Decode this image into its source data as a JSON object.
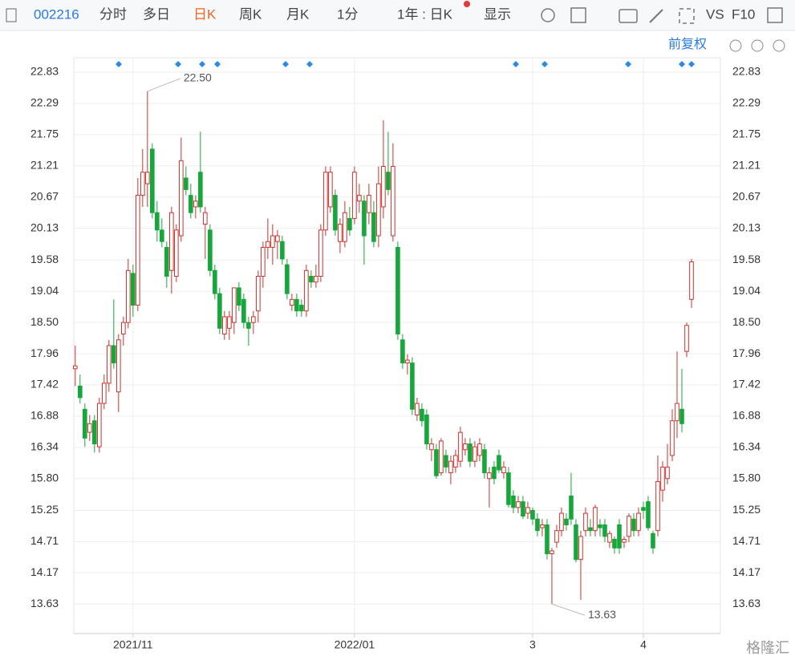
{
  "toolbar": {
    "code": "002216",
    "tabs": [
      "分时",
      "多日",
      "日K",
      "周K",
      "月K",
      "1分",
      "1年 : 日K",
      "显示",
      "VS",
      "F10"
    ],
    "active_tab": "日K"
  },
  "adjust": "前复权",
  "watermark": "格隆汇",
  "chart_data": {
    "type": "candlestick",
    "up_color": "#d0312d",
    "down_color": "#14a83b",
    "ylim": [
      13.12,
      23.08
    ],
    "yticks": [
      22.83,
      22.29,
      21.75,
      21.21,
      20.67,
      20.13,
      19.58,
      19.04,
      {
        "value": 18.5,
        "label": "18.50"
      },
      17.96,
      17.42,
      16.88,
      16.34,
      {
        "value": 15.8,
        "label": "15.80"
      },
      15.25,
      14.71,
      14.17,
      13.63
    ],
    "xlim": [
      -0.3,
      134
    ],
    "xticks": [
      {
        "value": 12,
        "label": "2021/11"
      },
      {
        "value": 58,
        "label": "2022/01"
      },
      {
        "value": 95,
        "label": "3"
      },
      {
        "value": 118,
        "label": "4"
      }
    ],
    "annotations": [
      {
        "index": 15,
        "value": 22.5,
        "label": "22.50"
      },
      {
        "index": 99,
        "value": 13.63
      }
    ],
    "grid": true,
    "values": [
      [
        17.7,
        18.1,
        17.4,
        17.75
      ],
      [
        17.4,
        17.6,
        17.1,
        17.2
      ],
      [
        17.0,
        17.1,
        16.35,
        16.5
      ],
      [
        16.6,
        16.9,
        16.45,
        16.75
      ],
      [
        16.8,
        16.9,
        16.25,
        16.4
      ],
      [
        16.35,
        17.2,
        16.25,
        17.1
      ],
      [
        17.1,
        17.6,
        17.0,
        17.45
      ],
      [
        17.45,
        18.2,
        17.3,
        18.1
      ],
      [
        18.1,
        18.9,
        17.7,
        17.8
      ],
      [
        17.3,
        18.3,
        16.95,
        18.2
      ],
      [
        18.3,
        18.6,
        18.1,
        18.5
      ],
      [
        18.5,
        19.6,
        18.4,
        19.4
      ],
      [
        19.35,
        19.5,
        18.6,
        18.8
      ],
      [
        18.8,
        21.0,
        18.7,
        20.7
      ],
      [
        20.7,
        21.5,
        20.5,
        21.1
      ],
      [
        20.9,
        22.5,
        20.5,
        21.1
      ],
      [
        21.5,
        21.6,
        20.3,
        20.4
      ],
      [
        20.4,
        20.6,
        19.9,
        20.1
      ],
      [
        20.1,
        20.3,
        19.8,
        19.9
      ],
      [
        19.8,
        19.9,
        19.1,
        19.3
      ],
      [
        19.4,
        20.5,
        19.0,
        20.4
      ],
      [
        19.3,
        20.2,
        19.2,
        20.1
      ],
      [
        20.0,
        21.7,
        19.9,
        21.3
      ],
      [
        21.0,
        21.2,
        20.7,
        20.8
      ],
      [
        20.7,
        20.9,
        20.3,
        20.4
      ],
      [
        20.5,
        20.7,
        20.3,
        20.6
      ],
      [
        21.1,
        21.8,
        20.4,
        20.5
      ],
      [
        20.2,
        20.5,
        19.6,
        20.4
      ],
      [
        20.1,
        20.2,
        19.3,
        19.4
      ],
      [
        19.4,
        19.5,
        18.9,
        19.0
      ],
      [
        19.0,
        19.1,
        18.3,
        18.4
      ],
      [
        18.3,
        18.7,
        18.2,
        18.6
      ],
      [
        18.4,
        18.7,
        18.2,
        18.6
      ],
      [
        18.5,
        19.1,
        18.3,
        19.1
      ],
      [
        19.1,
        19.2,
        18.7,
        18.8
      ],
      [
        18.9,
        19.0,
        18.4,
        18.5
      ],
      [
        18.5,
        18.6,
        18.1,
        18.4
      ],
      [
        18.5,
        18.7,
        18.3,
        18.6
      ],
      [
        18.7,
        19.4,
        18.5,
        19.3
      ],
      [
        19.3,
        19.9,
        19.1,
        19.8
      ],
      [
        19.8,
        20.3,
        19.6,
        19.9
      ],
      [
        19.8,
        20.2,
        19.5,
        20.0
      ],
      [
        19.9,
        20.1,
        19.6,
        20.0
      ],
      [
        19.9,
        20.0,
        19.5,
        19.6
      ],
      [
        19.5,
        19.6,
        18.9,
        19.0
      ],
      [
        18.8,
        19.0,
        18.7,
        18.9
      ],
      [
        18.9,
        19.0,
        18.6,
        18.7
      ],
      [
        18.8,
        18.9,
        18.6,
        18.7
      ],
      [
        18.7,
        19.5,
        18.6,
        19.4
      ],
      [
        19.3,
        19.4,
        19.1,
        19.2
      ],
      [
        19.2,
        19.5,
        19.1,
        19.3
      ],
      [
        19.3,
        20.2,
        19.2,
        20.1
      ],
      [
        20.1,
        21.2,
        20.0,
        21.1
      ],
      [
        20.5,
        21.2,
        20.4,
        21.1
      ],
      [
        20.7,
        20.8,
        20.0,
        20.1
      ],
      [
        19.9,
        20.3,
        19.7,
        20.2
      ],
      [
        19.9,
        20.6,
        19.8,
        20.4
      ],
      [
        20.3,
        20.5,
        20.0,
        20.1
      ],
      [
        20.3,
        21.2,
        20.2,
        21.1
      ],
      [
        20.6,
        20.9,
        20.4,
        20.7
      ],
      [
        20.6,
        20.7,
        19.5,
        20.0
      ],
      [
        20.4,
        20.9,
        20.2,
        20.7
      ],
      [
        20.4,
        20.6,
        19.8,
        19.9
      ],
      [
        20.0,
        21.2,
        19.8,
        20.9
      ],
      [
        20.5,
        22.0,
        20.3,
        21.2
      ],
      [
        21.1,
        21.8,
        20.7,
        20.8
      ],
      [
        20.0,
        21.6,
        19.9,
        21.2
      ],
      [
        19.8,
        19.9,
        18.2,
        18.3
      ],
      [
        18.2,
        18.3,
        17.7,
        17.8
      ],
      [
        17.8,
        17.95,
        17.6,
        17.85
      ],
      [
        17.8,
        17.9,
        16.9,
        17.0
      ],
      [
        16.9,
        17.2,
        16.8,
        17.1
      ],
      [
        17.0,
        17.1,
        16.7,
        16.8
      ],
      [
        16.9,
        17.0,
        16.3,
        16.4
      ],
      [
        16.3,
        16.5,
        16.1,
        16.4
      ],
      [
        16.3,
        16.4,
        15.8,
        15.85
      ],
      [
        15.9,
        16.5,
        15.85,
        16.45
      ],
      [
        16.2,
        16.3,
        15.9,
        16.0
      ],
      [
        15.9,
        16.2,
        15.7,
        16.1
      ],
      [
        16.0,
        16.3,
        15.9,
        16.2
      ],
      [
        16.1,
        16.7,
        16.0,
        16.6
      ],
      [
        16.3,
        16.5,
        16.2,
        16.4
      ],
      [
        16.4,
        16.5,
        16.0,
        16.1
      ],
      [
        16.1,
        16.45,
        16.0,
        16.35
      ],
      [
        16.2,
        16.5,
        16.1,
        16.4
      ],
      [
        16.3,
        16.4,
        15.8,
        15.9
      ],
      [
        15.8,
        16.0,
        15.3,
        15.9
      ],
      [
        16.0,
        16.1,
        15.7,
        15.8
      ],
      [
        16.2,
        16.3,
        15.9,
        15.95
      ],
      [
        15.9,
        16.1,
        15.8,
        16.0
      ],
      [
        15.9,
        16.0,
        15.3,
        15.35
      ],
      [
        15.5,
        15.6,
        15.2,
        15.3
      ],
      [
        15.3,
        15.5,
        15.2,
        15.4
      ],
      [
        15.4,
        15.5,
        15.1,
        15.15
      ],
      [
        15.2,
        15.4,
        15.1,
        15.3
      ],
      [
        15.25,
        15.3,
        15.0,
        15.1
      ],
      [
        15.1,
        15.2,
        14.8,
        14.9
      ],
      [
        14.95,
        15.1,
        14.8,
        15.0
      ],
      [
        15.0,
        15.1,
        14.4,
        14.5
      ],
      [
        14.5,
        14.6,
        13.63,
        14.55
      ],
      [
        14.7,
        15.0,
        14.6,
        14.9
      ],
      [
        14.9,
        15.3,
        14.8,
        15.2
      ],
      [
        15.1,
        15.2,
        14.9,
        15.0
      ],
      [
        15.5,
        15.9,
        15.0,
        15.1
      ],
      [
        15.0,
        15.1,
        14.35,
        14.4
      ],
      [
        14.4,
        14.9,
        13.7,
        14.8
      ],
      [
        14.9,
        15.3,
        14.8,
        15.2
      ],
      [
        14.95,
        15.1,
        14.8,
        14.9
      ],
      [
        14.9,
        15.35,
        14.8,
        15.3
      ],
      [
        15.0,
        15.1,
        14.8,
        14.95
      ],
      [
        15.0,
        15.1,
        14.7,
        14.8
      ],
      [
        14.7,
        14.9,
        14.6,
        14.85
      ],
      [
        14.75,
        14.8,
        14.5,
        14.6
      ],
      [
        15.0,
        15.1,
        14.5,
        14.6
      ],
      [
        14.7,
        14.8,
        14.6,
        14.75
      ],
      [
        14.8,
        15.2,
        14.7,
        15.15
      ],
      [
        15.1,
        15.2,
        14.8,
        14.9
      ],
      [
        14.9,
        15.3,
        14.8,
        15.2
      ],
      [
        15.3,
        15.4,
        15.1,
        15.25
      ],
      [
        15.4,
        15.5,
        14.9,
        14.95
      ],
      [
        14.85,
        14.9,
        14.5,
        14.6
      ],
      [
        14.9,
        16.2,
        14.8,
        15.75
      ],
      [
        15.6,
        16.1,
        15.4,
        16.0
      ],
      [
        15.8,
        16.4,
        15.7,
        16.0
      ],
      [
        16.2,
        17.0,
        16.1,
        16.8
      ],
      [
        16.8,
        18.0,
        16.5,
        17.1
      ],
      [
        17.0,
        17.7,
        16.6,
        16.75
      ],
      [
        18.0,
        18.5,
        17.9,
        18.45
      ],
      [
        18.9,
        19.6,
        18.75,
        19.55
      ]
    ]
  }
}
